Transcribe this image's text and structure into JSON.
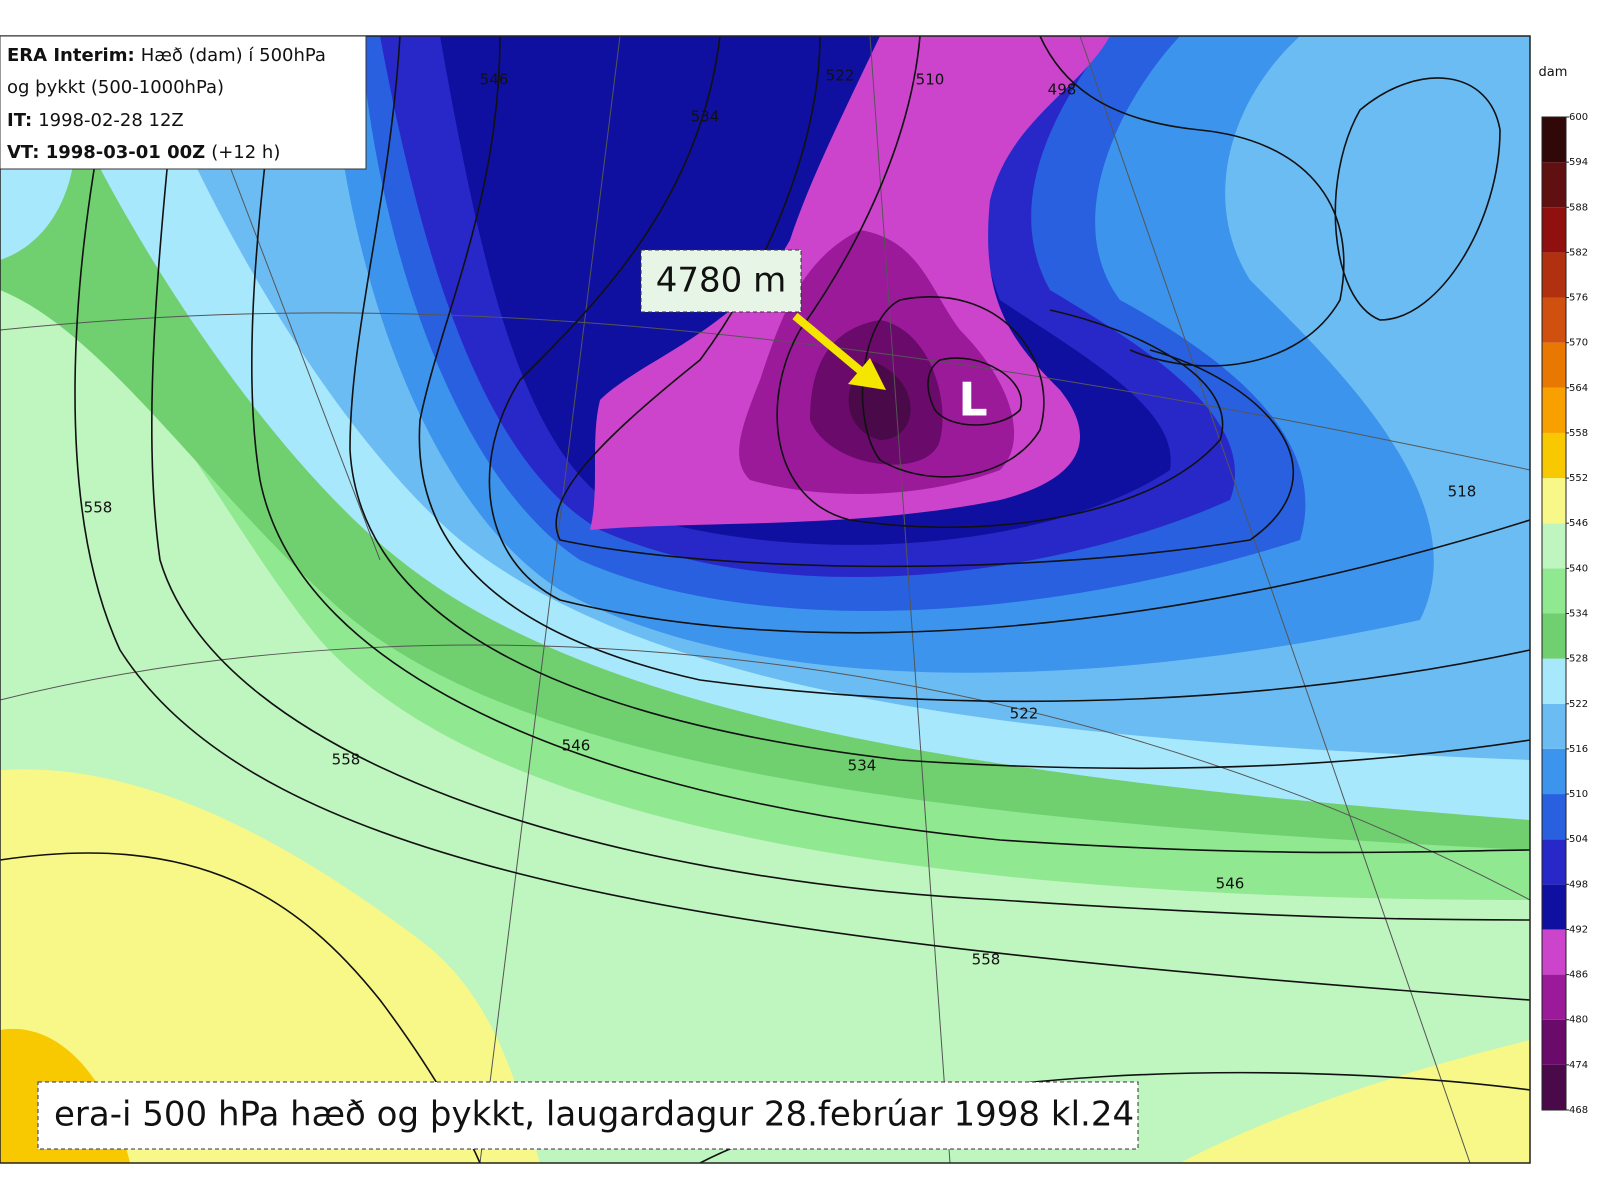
{
  "header": {
    "lines": [
      {
        "label": "ERA Interim:",
        "text": "Hæð (dam) í 500hPa"
      },
      {
        "text": "og þykkt (500-1000hPa)"
      },
      {
        "label": "IT:",
        "text": "1998-02-28 12Z"
      },
      {
        "label": "VT: 1998-03-01 00Z",
        "text": "(+12 h)"
      }
    ]
  },
  "map": {
    "annotation": "4780 m",
    "low_label": "L",
    "contour_labels": [
      "546",
      "534",
      "522",
      "510",
      "498",
      "558",
      "558",
      "546",
      "534",
      "522",
      "546",
      "558",
      "518"
    ]
  },
  "caption": "era-i 500 hPa hæð og þykkt, laugardagur 28.febrúar 1998 kl.24",
  "colorbar": {
    "unit": "dam",
    "ticks": [
      468,
      474,
      480,
      486,
      492,
      498,
      504,
      510,
      516,
      522,
      528,
      534,
      540,
      546,
      552,
      558,
      564,
      570,
      576,
      582,
      588,
      594,
      600
    ],
    "colors": [
      "#4a0a4a",
      "#6a0a6a",
      "#9a1a9a",
      "#cc44cc",
      "#1010a0",
      "#2828c8",
      "#2860e0",
      "#3c94ec",
      "#6cbcf4",
      "#a8e8fc",
      "#70d070",
      "#90e890",
      "#bff5bf",
      "#f8f888",
      "#f8c800",
      "#f8a000",
      "#e87800",
      "#d05010",
      "#b03010",
      "#901010",
      "#601010",
      "#300808"
    ]
  }
}
